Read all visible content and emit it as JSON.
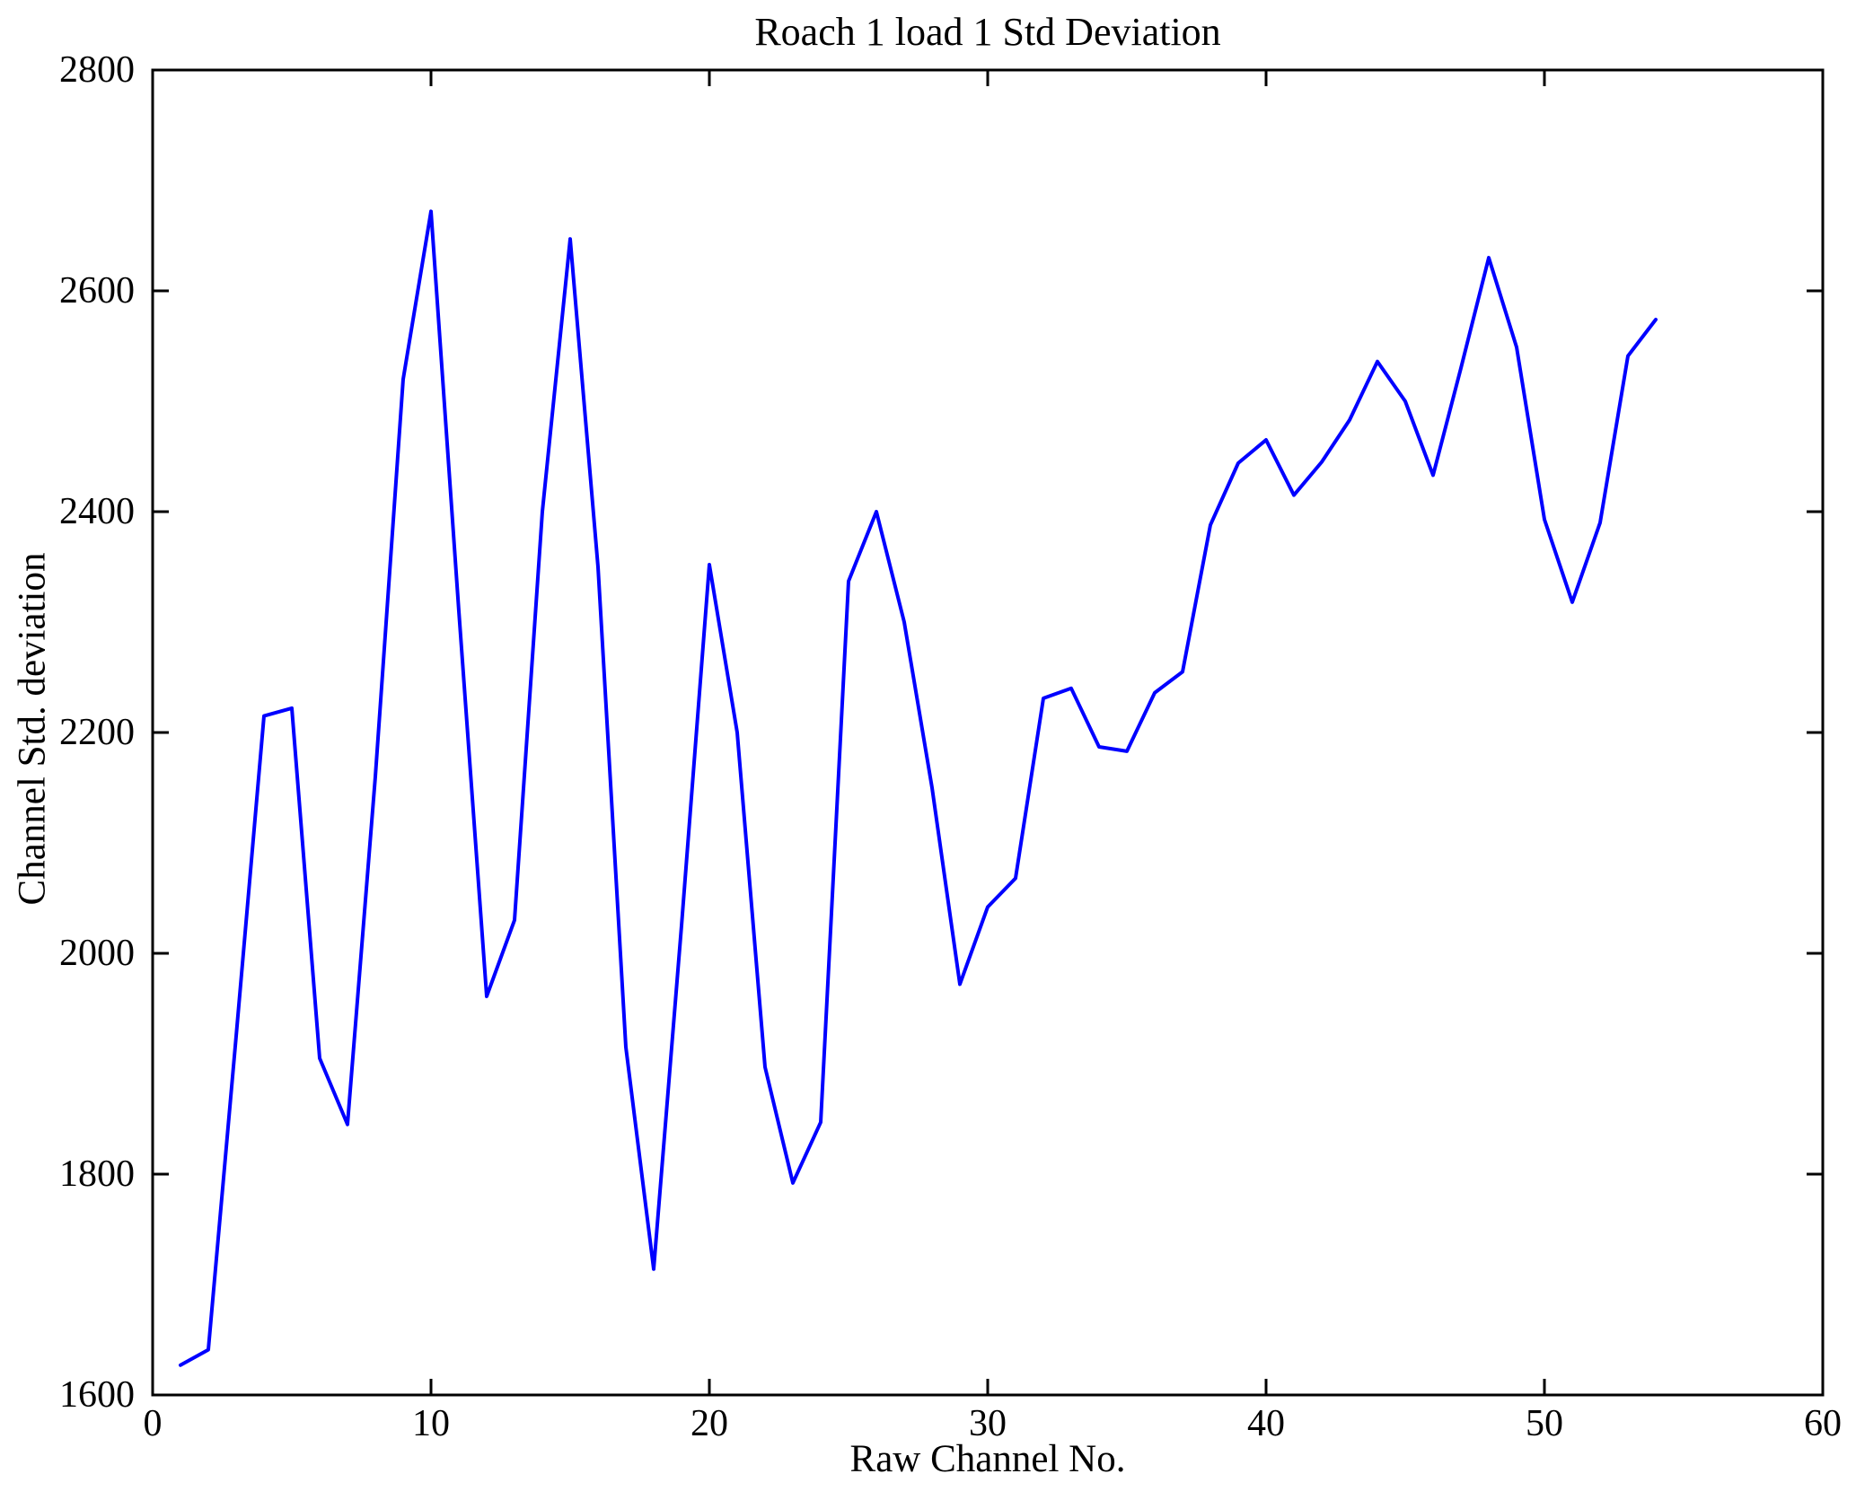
{
  "chart_data": {
    "type": "line",
    "title": "Roach 1 load 1 Std Deviation",
    "xlabel": "Raw Channel No.",
    "ylabel": "Channel Std. deviation",
    "xlim": [
      0,
      60
    ],
    "ylim": [
      1600,
      2800
    ],
    "xticks": [
      0,
      10,
      20,
      30,
      40,
      50,
      60
    ],
    "yticks": [
      1600,
      1800,
      2000,
      2200,
      2400,
      2600,
      2800
    ],
    "grid": false,
    "legend": null,
    "background_color": "#FFFFFF",
    "axis_color": "#000000",
    "line_color": "#0000FF",
    "series": [
      {
        "name": "Channel Std. deviation",
        "x": [
          1,
          2,
          3,
          4,
          5,
          6,
          7,
          8,
          9,
          10,
          11,
          12,
          13,
          14,
          15,
          16,
          17,
          18,
          19,
          20,
          21,
          22,
          23,
          24,
          25,
          26,
          27,
          28,
          29,
          30,
          31,
          32,
          33,
          34,
          35,
          36,
          37,
          38,
          39,
          40,
          41,
          42,
          43,
          44,
          45,
          46,
          47,
          48,
          49,
          50,
          51,
          52,
          53,
          54
        ],
        "y": [
          1627,
          1641,
          1925,
          2215,
          2222,
          1905,
          1845,
          2160,
          2520,
          2672,
          2310,
          1961,
          2030,
          2400,
          2647,
          2350,
          1915,
          1714,
          2025,
          2352,
          2200,
          1897,
          1792,
          1847,
          2337,
          2400,
          2300,
          2150,
          1972,
          2042,
          2068,
          2231,
          2240,
          2187,
          2183,
          2236,
          2255,
          2388,
          2444,
          2465,
          2415,
          2445,
          2483,
          2536,
          2500,
          2433,
          2530,
          2630,
          2549,
          2393,
          2318,
          2390,
          2541,
          2574
        ]
      }
    ]
  }
}
